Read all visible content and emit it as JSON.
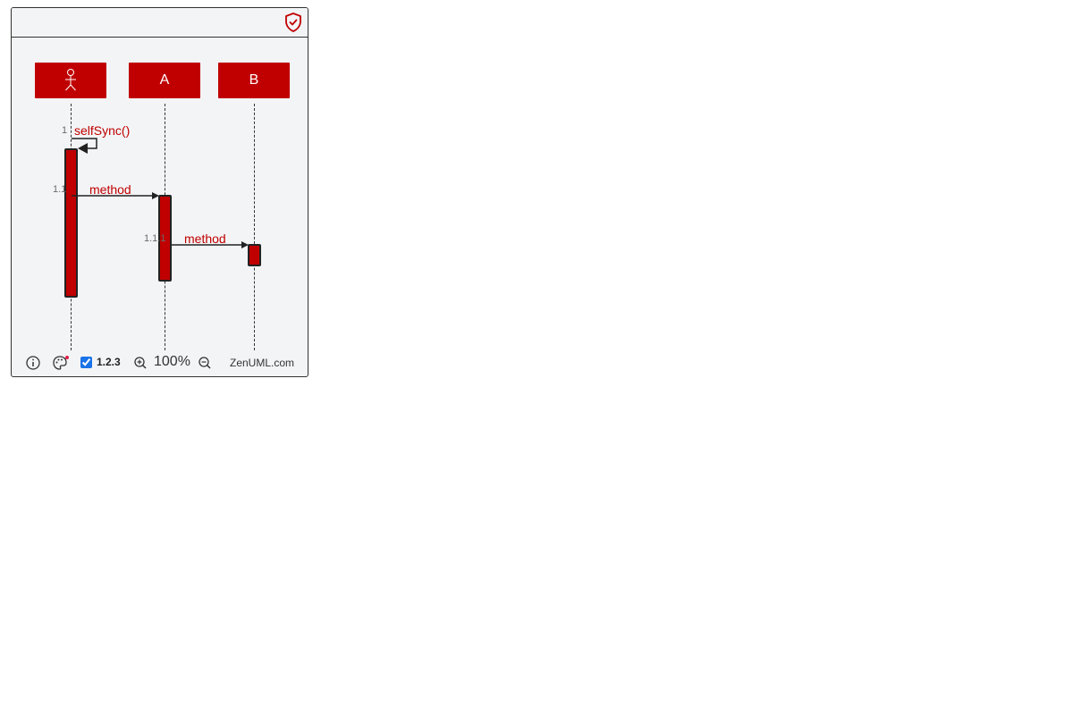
{
  "toolbar": {
    "privacy_icon": "shield-check-icon"
  },
  "participants": [
    {
      "id": "actor",
      "label": "",
      "icon": "stick-figure-icon"
    },
    {
      "id": "A",
      "label": "A"
    },
    {
      "id": "B",
      "label": "B"
    }
  ],
  "messages": [
    {
      "number": "1",
      "label": "selfSync()",
      "from": "actor",
      "to": "actor"
    },
    {
      "number": "1.1",
      "label": "method",
      "from": "actor",
      "to": "A"
    },
    {
      "number": "1.1.1",
      "label": "method",
      "from": "A",
      "to": "B"
    }
  ],
  "footer": {
    "info_icon": "info-icon",
    "theme_icon": "palette-icon",
    "numbering_checked": true,
    "numbering_label": "1.2.3",
    "zoom_in_icon": "zoom-in-icon",
    "zoom_level": "100%",
    "zoom_out_icon": "zoom-out-icon",
    "brand": "ZenUML.com"
  },
  "colors": {
    "accent": "#c00000",
    "background": "#f3f4f6"
  }
}
